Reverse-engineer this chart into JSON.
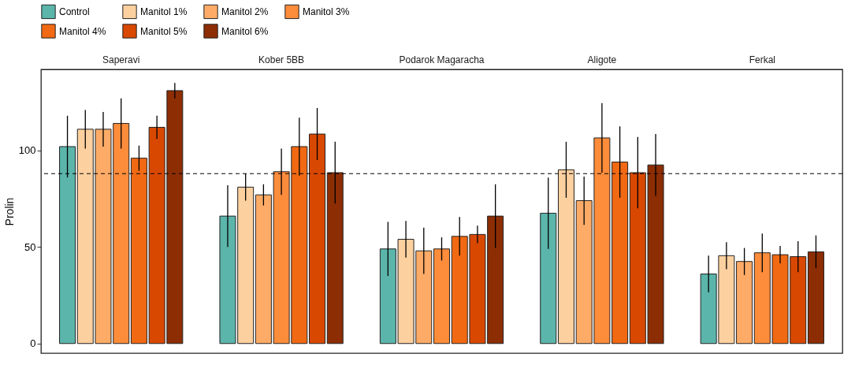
{
  "chart_data": {
    "type": "bar",
    "ylabel": "Prolin",
    "categories": [
      "Saperavi",
      "Kober 5BB",
      "Podarok Magaracha",
      "Aligote",
      "Ferkal"
    ],
    "ylim": [
      -5,
      142
    ],
    "yticks": [
      0,
      50,
      100
    ],
    "legend": "top",
    "ref_lines": [
      {
        "axis": "y",
        "value": 88,
        "line_style": "dashed"
      }
    ],
    "series": [
      {
        "name": "Control",
        "color": "#5bb5ab",
        "values": [
          102,
          66,
          49,
          67.5,
          36
        ],
        "errors": [
          16,
          16,
          14,
          18.5,
          9.5
        ]
      },
      {
        "name": "Manitol 1%",
        "color": "#fdd09f",
        "values": [
          111,
          81,
          54,
          90,
          45.5
        ],
        "errors": [
          10,
          7,
          9.5,
          14.5,
          7
        ]
      },
      {
        "name": "Manitol 2%",
        "color": "#fdab67",
        "values": [
          111,
          77,
          48,
          74,
          42.5
        ],
        "errors": [
          9,
          5.5,
          12,
          12.5,
          7
        ]
      },
      {
        "name": "Manitol 3%",
        "color": "#fd8c3b",
        "values": [
          114,
          89,
          49,
          106.5,
          47
        ],
        "errors": [
          13,
          12,
          6,
          18,
          10
        ]
      },
      {
        "name": "Manitol 4%",
        "color": "#f16913",
        "values": [
          96,
          102,
          55.5,
          94,
          46
        ],
        "errors": [
          6.5,
          15,
          10,
          18.5,
          4.5
        ]
      },
      {
        "name": "Manitol 5%",
        "color": "#d94801",
        "values": [
          112,
          108.5,
          56.5,
          88.5,
          45
        ],
        "errors": [
          6,
          13.5,
          4.5,
          18.5,
          8
        ]
      },
      {
        "name": "Manitol 6%",
        "color": "#8c2d04",
        "values": [
          131,
          88.5,
          66,
          92.5,
          47.5
        ],
        "errors": [
          4,
          16,
          16.5,
          16,
          8.5
        ]
      }
    ]
  }
}
